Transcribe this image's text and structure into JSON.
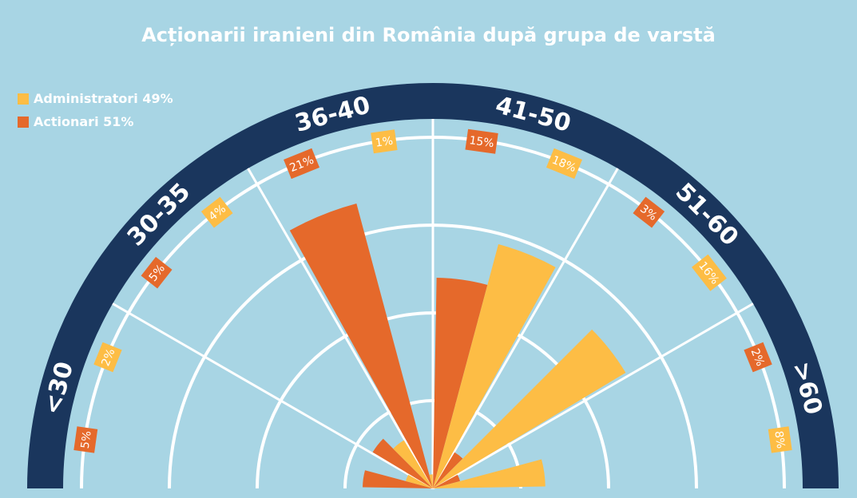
{
  "chart_data": {
    "type": "radial-bar",
    "title": "Acționarii iranieni din România după grupa de varstă",
    "legend": {
      "placement": "top-left",
      "items": [
        {
          "label": "Administratori 49%",
          "color": "#fdbd45"
        },
        {
          "label": "Actionari 51%",
          "color": "#e5692b"
        }
      ]
    },
    "categories": [
      "<30",
      "30-35",
      "36-40",
      "41-50",
      "51-60",
      ">60"
    ],
    "series": [
      {
        "name": "Administratori",
        "color": "#fdbd45",
        "values": [
          2,
          4,
          1,
          18,
          16,
          8
        ],
        "labels": [
          "2%",
          "4%",
          "1%",
          "18%",
          "16%",
          "8%"
        ]
      },
      {
        "name": "Actionari",
        "color": "#e5692b",
        "values": [
          5,
          5,
          21,
          15,
          3,
          2
        ],
        "labels": [
          "5%",
          "5%",
          "21%",
          "15%",
          "3%",
          "2%"
        ]
      }
    ],
    "ylim": [
      0,
      25
    ],
    "grid": true
  },
  "colors": {
    "background": "#a8d5e4",
    "ring": "#1a365d",
    "grid": "#ffffff",
    "admin": "#fdbd45",
    "actionari": "#e5692b"
  }
}
